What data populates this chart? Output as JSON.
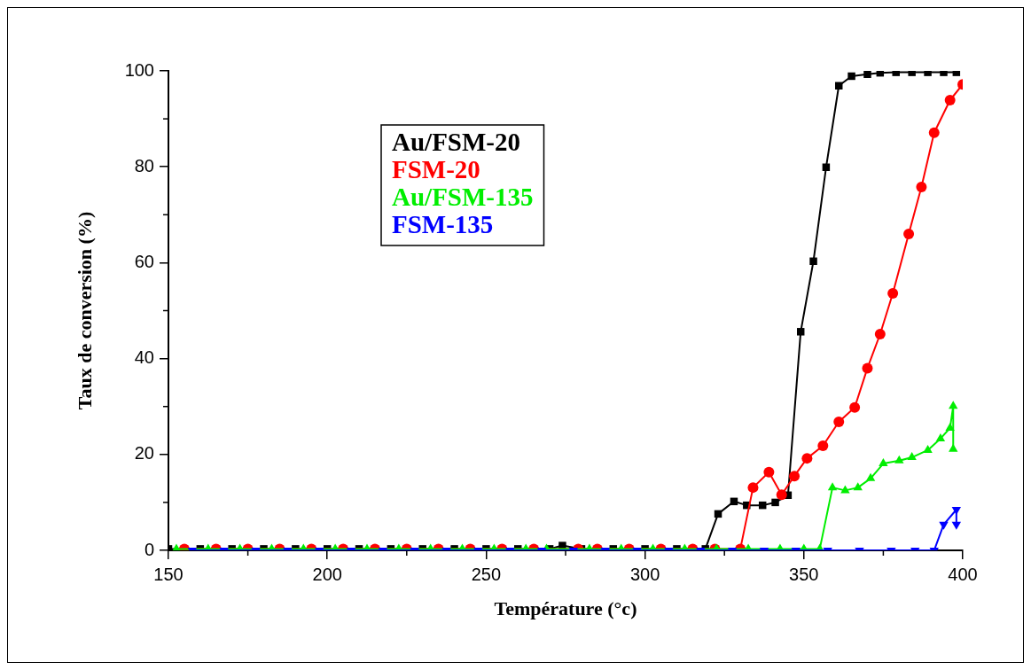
{
  "chart_data": {
    "type": "line",
    "xlabel": "Température (°c)",
    "ylabel": "Taux de conversion (%)",
    "xlim": [
      150,
      400
    ],
    "xticks": [
      150,
      200,
      250,
      300,
      350,
      400
    ],
    "ylim": [
      0,
      100
    ],
    "yticks": [
      0,
      20,
      40,
      60,
      80,
      100
    ],
    "grid": false,
    "legend": "top left",
    "line_style": "solid",
    "series": [
      {
        "name": "Au/FSM-20",
        "color": "#000000",
        "marker": "square",
        "x": [
          150,
          160,
          170,
          180,
          190,
          200,
          210,
          220,
          230,
          240,
          250,
          260,
          270,
          274,
          280,
          290,
          300,
          310,
          319,
          323,
          328,
          332,
          337,
          341,
          345,
          349,
          353,
          357,
          361,
          365,
          370,
          374,
          379,
          384,
          389,
          394,
          398
        ],
        "values": [
          0.3,
          0.3,
          0.3,
          0.3,
          0.3,
          0.3,
          0.3,
          0.3,
          0.3,
          0.3,
          0.3,
          0.3,
          0.3,
          1,
          0.3,
          0.3,
          0.3,
          0.3,
          0.3,
          7.6,
          10.2,
          9.4,
          9.4,
          10,
          11.5,
          45.6,
          60.3,
          79.9,
          96.9,
          98.9,
          99.3,
          99.6,
          99.7,
          99.7,
          99.7,
          99.7,
          99.7
        ]
      },
      {
        "name": "FSM-20",
        "color": "#ff0000",
        "marker": "circle",
        "x": [
          155,
          165,
          175,
          185,
          195,
          205,
          215,
          225,
          235,
          245,
          255,
          265,
          279,
          285,
          295,
          305,
          315,
          322,
          330,
          334,
          339,
          343,
          347,
          351,
          356,
          361,
          366,
          370,
          374,
          378,
          383,
          387,
          391,
          396,
          400
        ],
        "values": [
          0.3,
          0.3,
          0.3,
          0.3,
          0.3,
          0.3,
          0.3,
          0.3,
          0.3,
          0.3,
          0.3,
          0.3,
          0.3,
          0.3,
          0.3,
          0.3,
          0.3,
          0.3,
          0.3,
          13.1,
          16.3,
          11.6,
          15.5,
          19.2,
          21.8,
          26.8,
          29.8,
          38,
          45.1,
          53.6,
          66,
          75.8,
          87.1,
          93.9,
          97.2
        ]
      },
      {
        "name": "Au/FSM-135",
        "color": "#00ee00",
        "marker": "triangle",
        "x": [
          152.5,
          162.5,
          172.5,
          182.5,
          192.5,
          202.5,
          212.5,
          222.5,
          232.5,
          242.5,
          252.5,
          262.5,
          269,
          282.5,
          292.5,
          302.5,
          312.5,
          322.5,
          332.5,
          342.5,
          350,
          355,
          359,
          363,
          367,
          371,
          375,
          380,
          384,
          389,
          393,
          396,
          397,
          397
        ],
        "values": [
          0.3,
          0.3,
          0.3,
          0.3,
          0.3,
          0.3,
          0.3,
          0.3,
          0.3,
          0.3,
          0.3,
          0.3,
          0.3,
          0.3,
          0.3,
          0.3,
          0.3,
          0.3,
          0.3,
          0.3,
          0.3,
          0.3,
          13.1,
          12.5,
          13.1,
          15,
          18.1,
          18.7,
          19.4,
          20.9,
          23.3,
          25.5,
          30.1,
          21.1
        ]
      },
      {
        "name": "FSM-135",
        "color": "#0000ff",
        "marker": "triangle-down",
        "x": [
          157.5,
          167.5,
          177.5,
          187.5,
          197.5,
          207.5,
          217.5,
          227.5,
          237.5,
          247.5,
          257.5,
          267.5,
          277.5,
          287.5,
          297.5,
          307.5,
          317.5,
          327.5,
          337.5,
          347.5,
          357.5,
          367.5,
          377.5,
          385,
          391,
          394,
          398,
          398
        ],
        "values": [
          0,
          0,
          0,
          0,
          0,
          0,
          0,
          0,
          0,
          0,
          0,
          0,
          0,
          0,
          0,
          0,
          0,
          0,
          0,
          0,
          0,
          0,
          0,
          0,
          0,
          5.4,
          8.5,
          5.4
        ]
      }
    ]
  }
}
